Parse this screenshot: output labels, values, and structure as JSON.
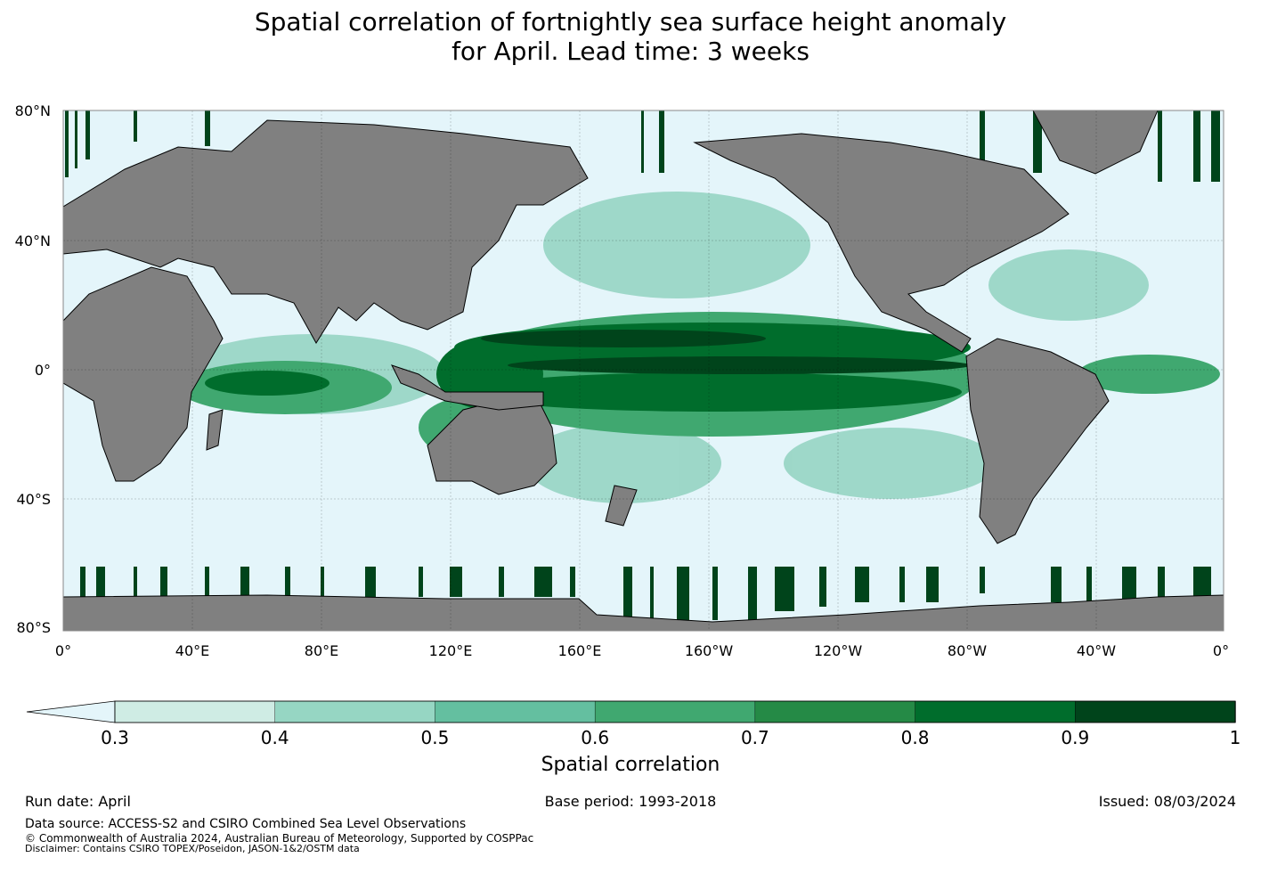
{
  "title": {
    "line1": "Spatial correlation of fortnightly sea surface height anomaly",
    "line2": "for April. Lead time: 3 weeks"
  },
  "map": {
    "projection": "equirectangular",
    "ocean_color": "#e4f5fa",
    "land_color": "#808080",
    "lat_labels": [
      "80°N",
      "40°N",
      "0°",
      "40°S",
      "80°S"
    ],
    "lon_labels": [
      "0°",
      "40°E",
      "80°E",
      "120°E",
      "160°E",
      "160°W",
      "120°W",
      "80°W",
      "40°W",
      "0°"
    ]
  },
  "colorbar": {
    "label": "Spatial correlation",
    "ticks": [
      "0.3",
      "0.4",
      "0.5",
      "0.6",
      "0.7",
      "0.8",
      "0.9",
      "1"
    ],
    "extend_color": "#e4f5fa",
    "colors": [
      "#cfece4",
      "#96d6c3",
      "#64bfa0",
      "#40a870",
      "#258a46",
      "#006d2c",
      "#00441b"
    ]
  },
  "footer": {
    "run_date": "Run date: April",
    "base_period": "Base period: 1993-2018",
    "issued": "Issued: 08/03/2024",
    "source": "Data source: ACCESS-S2 and CSIRO Combined Sea Level Observations",
    "copyright": "© Commonwealth of Australia 2024, Australian Bureau of Meteorology, Supported by COSPPac",
    "disclaimer": "Disclaimer: Contains CSIRO TOPEX/Poseidon, JASON-1&2/OSTM data"
  }
}
